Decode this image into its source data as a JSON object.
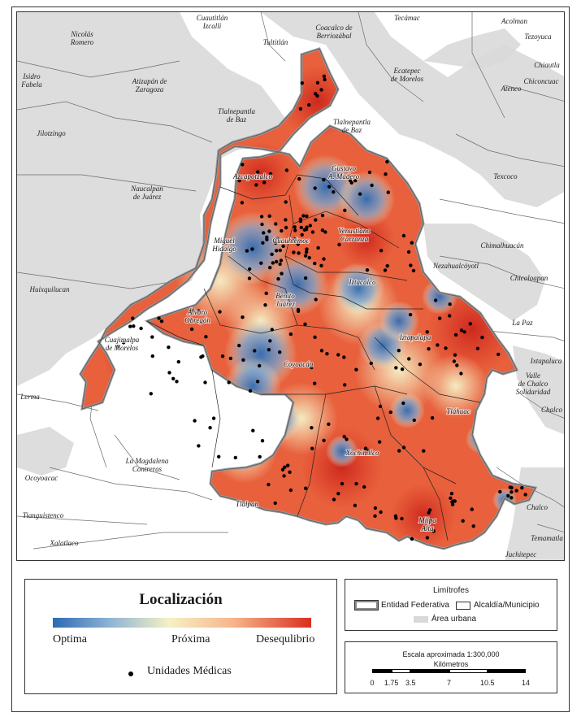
{
  "map": {
    "colors": {
      "optima": "#2b6bb3",
      "proxima": "#f5f1c4",
      "desequilibrio": "#d7301f",
      "urban_area": "#d9d9d9",
      "boundary": "#999999"
    },
    "labels": {
      "cuautitlan_izcalli": [
        "Cuautitlán",
        "Izcalli"
      ],
      "nicolas_romero": [
        "Nicolás",
        "Romero"
      ],
      "isidro_fabela": [
        "Isidro",
        "Fabela"
      ],
      "atizapan": [
        "Atizapán de",
        "Zaragoza"
      ],
      "tultitlan": [
        "Tultitlán"
      ],
      "coacalco": [
        "Coacalco de",
        "Berriozábal"
      ],
      "tecamac": [
        "Tecámac"
      ],
      "acolman": [
        "Acolman"
      ],
      "tezoyuca": [
        "Tezoyuca"
      ],
      "chiautla": [
        "Chiautla"
      ],
      "chiconcuac": [
        "Chiconcuac"
      ],
      "ecatepec": [
        "Ecatepec",
        "de Morelos"
      ],
      "atenco": [
        "Atenco"
      ],
      "jilotzingo": [
        "Jilotzingo"
      ],
      "tlalnepantla_w": [
        "Tlalnepantla",
        "de Baz"
      ],
      "tlalnepantla_e": [
        "Tlalnepantla",
        "de Baz"
      ],
      "texcoco": [
        "Texcoco"
      ],
      "naucalpan": [
        "Naucalpan",
        "de Juárez"
      ],
      "chimalhuacan": [
        "Chimalhuacán"
      ],
      "nezahualcoyotl": [
        "Nezahualcóyotl"
      ],
      "chicoloapan": [
        "Chicoloapan"
      ],
      "huixquilucan": [
        "Huixquilucan"
      ],
      "la_paz": [
        "La Paz"
      ],
      "ixtapaluca": [
        "Ixtapaluca"
      ],
      "valle_chalco": [
        "Valle",
        "de Chalco",
        "Solidaridad"
      ],
      "lerma": [
        "Lerma"
      ],
      "la_magdalena": [
        "La Magdalena",
        "Contreras"
      ],
      "ocoyoacac": [
        "Ocoyoacac"
      ],
      "tianguistenco": [
        "Tianguistenco"
      ],
      "xalatlaco": [
        "Xalatlaco"
      ],
      "chalco_w": [
        "Chalco"
      ],
      "chalco_e": [
        "Chalco"
      ],
      "temamatla": [
        "Temamatla"
      ],
      "juchitepec": [
        "Juchitepec"
      ],
      "azcapotzalco": [
        "Azcapotzalco"
      ],
      "gustavo_madero": [
        "Gustavo",
        "A. Madero"
      ],
      "miguel_hidalgo": [
        "Miguel",
        "Hidalgo"
      ],
      "cuauhtemoc": [
        "Cuauhtémoc"
      ],
      "venustiano": [
        "Venustiano",
        "Carranza"
      ],
      "iztacalco": [
        "Iztacalco"
      ],
      "benito_juarez": [
        "Benito",
        "Juárez"
      ],
      "alvaro_obregon": [
        "Álvaro",
        "Obregón"
      ],
      "cuajimalpa": [
        "Cuajimalpa",
        "de Morelos"
      ],
      "iztapalapa": [
        "Iztapalapa"
      ],
      "coyoacan": [
        "Coyoacán"
      ],
      "tlahuac": [
        "Tláhuac"
      ],
      "xochimilco": [
        "Xochimilco"
      ],
      "tlalpan": [
        "Tlalpan"
      ],
      "milpa_alta": [
        "Milpa",
        "Alta"
      ]
    }
  },
  "legend": {
    "title": "Localización",
    "gradient_labels": {
      "left": "Optima",
      "mid": "Próxima",
      "right": "Desequlibrio"
    },
    "units_label": "Unidades Médicas"
  },
  "limitrofes": {
    "title": "Limítrofes",
    "entidad": "Entidad Federativa",
    "alcaldia": "Alcaldía/Municipio",
    "urbana": "Área urbana"
  },
  "scale": {
    "title": "Escala aproximada  1:300,000",
    "unit": "Kilómetros",
    "ticks": [
      "0",
      "1.75",
      "3.5",
      "7",
      "10.5",
      "14"
    ]
  }
}
